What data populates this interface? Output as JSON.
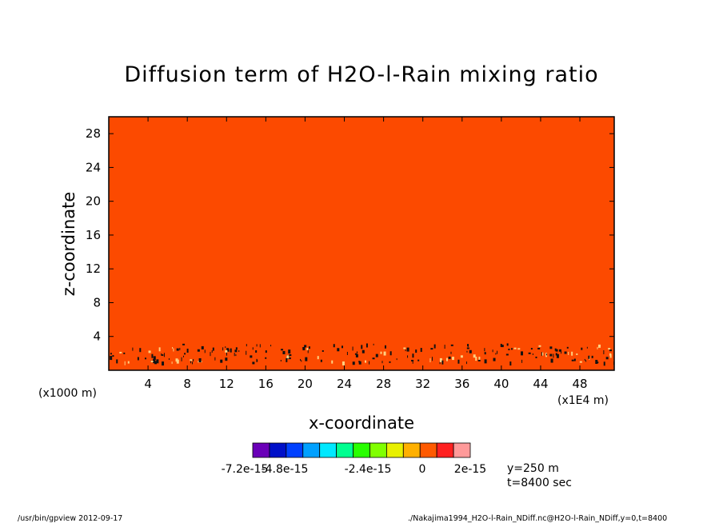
{
  "chart_data": {
    "type": "heatmap",
    "title": "Diffusion term of H2O-l-Rain mixing ratio",
    "xlabel": "x-coordinate",
    "ylabel": "z-coordinate",
    "x_unit_left": "(x1000 m)",
    "x_unit_right": "(x1E4 m)",
    "xlim": [
      0,
      51.5
    ],
    "ylim": [
      0,
      30
    ],
    "x_ticks": [
      4,
      8,
      12,
      16,
      20,
      24,
      28,
      32,
      36,
      40,
      44,
      48
    ],
    "y_ticks": [
      4,
      8,
      12,
      16,
      20,
      24,
      28
    ],
    "background_value_color": "#fc4a00",
    "colorbar": {
      "colors": [
        "#6a00b8",
        "#0010c8",
        "#0040ff",
        "#00a0ff",
        "#00e8ff",
        "#00ff90",
        "#28ff00",
        "#80ff00",
        "#e8f000",
        "#ffb000",
        "#ff5a00",
        "#ff2020",
        "#ff9a9a"
      ],
      "labels": [
        "-7.2e-15",
        "-4.8e-15",
        "-2.4e-15",
        "0",
        "2e-15"
      ]
    },
    "annotations": [
      "y=250 m",
      "t=8400 sec"
    ],
    "speckle_band_z": [
      1.0,
      3.2
    ]
  },
  "footer": {
    "left": "/usr/bin/gpview  2012-09-17",
    "right": "./Nakajima1994_H2O-l-Rain_NDiff.nc@H2O-l-Rain_NDiff,y=0,t=8400"
  }
}
